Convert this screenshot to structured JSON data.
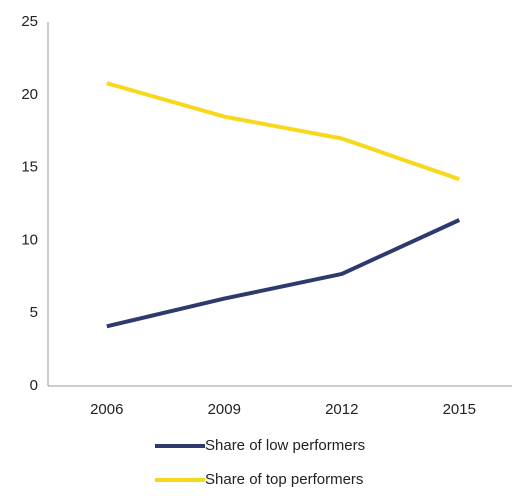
{
  "chart_data": {
    "type": "line",
    "categories": [
      "2006",
      "2009",
      "2012",
      "2015"
    ],
    "series": [
      {
        "name": "Share of low performers",
        "color": "#2e3a6e",
        "values": [
          4.1,
          6.0,
          7.7,
          11.4
        ]
      },
      {
        "name": "Share of top performers",
        "color": "#f8d81c",
        "values": [
          20.8,
          18.5,
          17.0,
          14.2
        ]
      }
    ],
    "ylim": [
      0,
      25
    ],
    "yticks": [
      0,
      5,
      10,
      15,
      20,
      25
    ],
    "grid": false
  }
}
